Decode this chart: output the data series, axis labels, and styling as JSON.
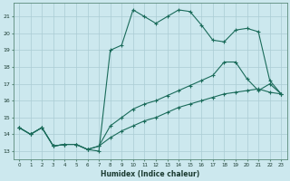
{
  "xlabel": "Humidex (Indice chaleur)",
  "bg_color": "#cce8ee",
  "grid_color": "#aaccd4",
  "line_color": "#1a6b5a",
  "xlim": [
    -0.5,
    23.5
  ],
  "ylim": [
    12.5,
    21.8
  ],
  "yticks": [
    13,
    14,
    15,
    16,
    17,
    18,
    19,
    20,
    21
  ],
  "xticks": [
    0,
    1,
    2,
    3,
    4,
    5,
    6,
    7,
    8,
    9,
    10,
    11,
    12,
    13,
    14,
    15,
    16,
    17,
    18,
    19,
    20,
    21,
    22,
    23
  ],
  "line1_x": [
    0,
    1,
    2,
    3,
    4,
    5,
    6,
    7,
    8,
    9,
    10,
    11,
    12,
    13,
    14,
    15,
    16,
    17,
    18,
    19,
    20,
    21,
    22,
    23
  ],
  "line1_y": [
    14.4,
    14.0,
    14.4,
    13.3,
    13.4,
    13.4,
    13.1,
    13.0,
    19.0,
    19.3,
    21.4,
    21.0,
    20.6,
    21.0,
    21.4,
    21.3,
    20.5,
    19.6,
    19.5,
    20.2,
    20.3,
    20.1,
    17.2,
    16.4
  ],
  "line2_x": [
    0,
    1,
    2,
    3,
    4,
    5,
    6,
    7,
    8,
    9,
    10,
    11,
    12,
    13,
    14,
    15,
    16,
    17,
    18,
    19,
    20,
    21,
    22,
    23
  ],
  "line2_y": [
    14.4,
    14.0,
    14.4,
    13.3,
    13.4,
    13.4,
    13.1,
    13.3,
    14.5,
    15.0,
    15.5,
    15.8,
    16.0,
    16.3,
    16.6,
    16.9,
    17.2,
    17.5,
    18.3,
    18.3,
    17.3,
    16.6,
    17.0,
    16.4
  ],
  "line3_x": [
    0,
    1,
    2,
    3,
    4,
    5,
    6,
    7,
    8,
    9,
    10,
    11,
    12,
    13,
    14,
    15,
    16,
    17,
    18,
    19,
    20,
    21,
    22,
    23
  ],
  "line3_y": [
    14.4,
    14.0,
    14.4,
    13.3,
    13.4,
    13.4,
    13.1,
    13.3,
    13.8,
    14.2,
    14.5,
    14.8,
    15.0,
    15.3,
    15.6,
    15.8,
    16.0,
    16.2,
    16.4,
    16.5,
    16.6,
    16.7,
    16.5,
    16.4
  ]
}
